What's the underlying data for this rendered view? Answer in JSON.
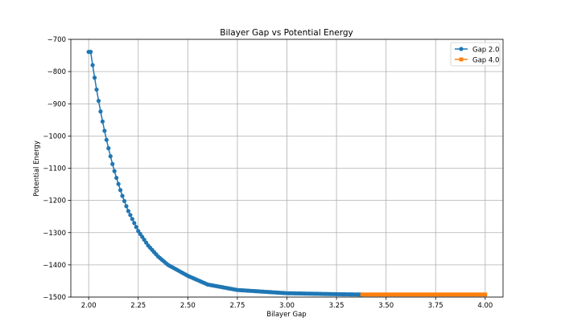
{
  "chart_data": {
    "type": "line",
    "title": "Bilayer Gap vs Potential Energy",
    "xlabel": "Bilayer Gap",
    "ylabel": "Potential Energy",
    "xlim": [
      1.91,
      4.09
    ],
    "ylim": [
      -1500,
      -700
    ],
    "grid": true,
    "legend_position": "top-right",
    "xticks": [
      2.0,
      2.25,
      2.5,
      2.75,
      3.0,
      3.25,
      3.5,
      3.75,
      4.0
    ],
    "xtick_labels": [
      "2.00",
      "2.25",
      "2.50",
      "2.75",
      "3.00",
      "3.25",
      "3.50",
      "3.75",
      "4.00"
    ],
    "yticks": [
      -1500,
      -1400,
      -1300,
      -1200,
      -1100,
      -1000,
      -900,
      -800,
      -700
    ],
    "ytick_labels": [
      "−1500",
      "−1400",
      "−1300",
      "−1200",
      "−1100",
      "−1000",
      "−900",
      "−800",
      "−700"
    ],
    "series": [
      {
        "name": "Gap 2.0",
        "color": "#1f77b4",
        "marker": "circle",
        "x_start": 2.0,
        "x_end": 3.38,
        "x_step": 0.01,
        "model": "E(x) = -1492 + 753 * exp(-(x - 2.01) / 0.1643)",
        "points": [
          [
            2.01,
            -739
          ],
          [
            2.02,
            -780
          ],
          [
            2.03,
            -819
          ],
          [
            2.04,
            -856
          ],
          [
            2.05,
            -891
          ],
          [
            2.06,
            -924
          ],
          [
            2.07,
            -955
          ],
          [
            2.08,
            -984
          ],
          [
            2.09,
            -1012
          ],
          [
            2.1,
            -1038
          ],
          [
            2.11,
            -1063
          ],
          [
            2.12,
            -1087
          ],
          [
            2.13,
            -1109
          ],
          [
            2.14,
            -1130
          ],
          [
            2.15,
            -1149
          ],
          [
            2.16,
            -1168
          ],
          [
            2.17,
            -1186
          ],
          [
            2.18,
            -1202
          ],
          [
            2.19,
            -1218
          ],
          [
            2.2,
            -1233
          ],
          [
            2.25,
            -1295
          ],
          [
            2.3,
            -1340
          ],
          [
            2.35,
            -1374
          ],
          [
            2.4,
            -1400
          ],
          [
            2.5,
            -1434
          ],
          [
            2.6,
            -1461
          ],
          [
            2.75,
            -1478
          ],
          [
            3.0,
            -1488
          ],
          [
            3.25,
            -1491
          ],
          [
            3.38,
            -1492
          ]
        ]
      },
      {
        "name": "Gap 4.0",
        "color": "#ff7f0e",
        "marker": "square",
        "x_start": 3.38,
        "x_end": 4.0,
        "x_step": 0.01,
        "points": [
          [
            3.38,
            -1492
          ],
          [
            3.5,
            -1492
          ],
          [
            3.75,
            -1492
          ],
          [
            4.0,
            -1492
          ]
        ]
      }
    ]
  }
}
